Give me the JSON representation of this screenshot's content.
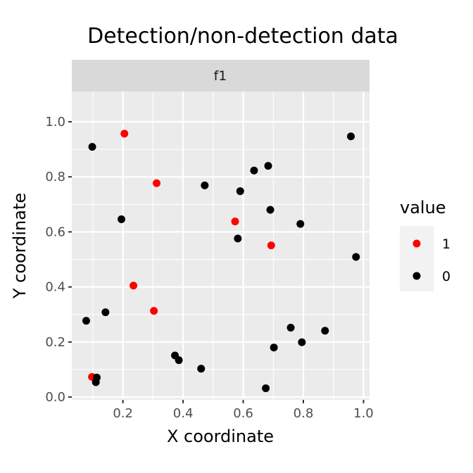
{
  "chart_data": {
    "type": "scatter",
    "title": "Detection/non-detection data",
    "xlabel": "X coordinate",
    "ylabel": "Y coordinate",
    "facet": "f1",
    "xlim": [
      0.03,
      1.02
    ],
    "ylim": [
      -0.01,
      1.11
    ],
    "x_ticks": [
      0.2,
      0.4,
      0.6,
      0.8,
      1.0
    ],
    "x_tick_labels": [
      "0.2",
      "0.4",
      "0.6",
      "0.8",
      "1.0"
    ],
    "y_ticks": [
      0.0,
      0.2,
      0.4,
      0.6,
      0.8,
      1.0
    ],
    "y_tick_labels": [
      "0.0",
      "0.2",
      "0.4",
      "0.6",
      "0.8",
      "1.0"
    ],
    "grid": true,
    "legend": {
      "title": "value",
      "placement": "right",
      "entries": [
        {
          "label": "1",
          "color": "#ff0000"
        },
        {
          "label": "0",
          "color": "#000000"
        }
      ]
    },
    "series": [
      {
        "name": "1",
        "color": "#ff0000",
        "points": [
          {
            "x": 0.205,
            "y": 0.957
          },
          {
            "x": 0.312,
            "y": 0.777
          },
          {
            "x": 0.573,
            "y": 0.638
          },
          {
            "x": 0.693,
            "y": 0.551
          },
          {
            "x": 0.235,
            "y": 0.405
          },
          {
            "x": 0.303,
            "y": 0.313
          },
          {
            "x": 0.097,
            "y": 0.073
          }
        ]
      },
      {
        "name": "0",
        "color": "#000000",
        "points": [
          {
            "x": 0.098,
            "y": 0.909
          },
          {
            "x": 0.958,
            "y": 0.947
          },
          {
            "x": 0.636,
            "y": 0.823
          },
          {
            "x": 0.683,
            "y": 0.84
          },
          {
            "x": 0.472,
            "y": 0.769
          },
          {
            "x": 0.59,
            "y": 0.748
          },
          {
            "x": 0.69,
            "y": 0.68
          },
          {
            "x": 0.195,
            "y": 0.646
          },
          {
            "x": 0.79,
            "y": 0.629
          },
          {
            "x": 0.582,
            "y": 0.576
          },
          {
            "x": 0.975,
            "y": 0.509
          },
          {
            "x": 0.078,
            "y": 0.277
          },
          {
            "x": 0.142,
            "y": 0.308
          },
          {
            "x": 0.758,
            "y": 0.252
          },
          {
            "x": 0.872,
            "y": 0.241
          },
          {
            "x": 0.795,
            "y": 0.199
          },
          {
            "x": 0.702,
            "y": 0.18
          },
          {
            "x": 0.373,
            "y": 0.151
          },
          {
            "x": 0.386,
            "y": 0.134
          },
          {
            "x": 0.46,
            "y": 0.103
          },
          {
            "x": 0.113,
            "y": 0.071
          },
          {
            "x": 0.11,
            "y": 0.054
          },
          {
            "x": 0.675,
            "y": 0.032
          }
        ]
      }
    ]
  }
}
